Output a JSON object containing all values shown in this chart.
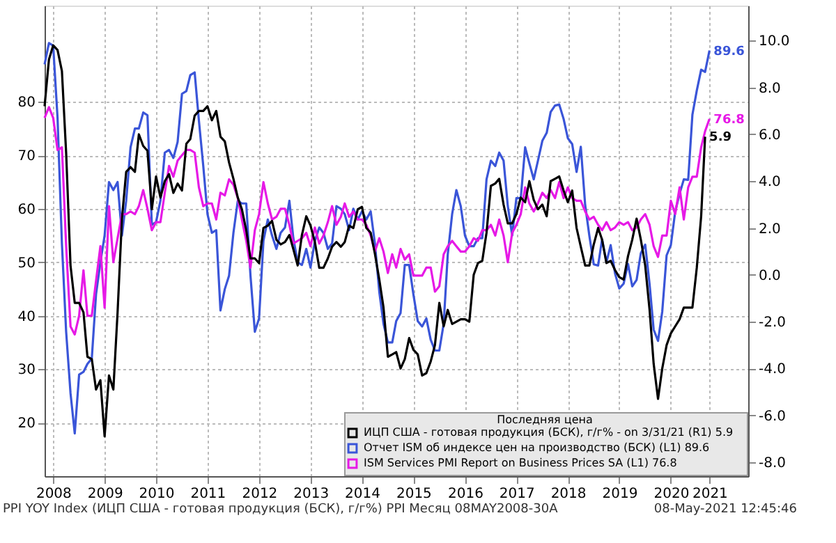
{
  "chart_data": {
    "type": "line",
    "x": [
      "2008-05",
      "2008-06",
      "2008-07",
      "2008-08",
      "2008-09",
      "2008-10",
      "2008-11",
      "2008-12",
      "2009-01",
      "2009-02",
      "2009-03",
      "2009-04",
      "2009-05",
      "2009-06",
      "2009-07",
      "2009-08",
      "2009-09",
      "2009-10",
      "2009-11",
      "2009-12",
      "2010-01",
      "2010-02",
      "2010-03",
      "2010-04",
      "2010-05",
      "2010-06",
      "2010-07",
      "2010-08",
      "2010-09",
      "2010-10",
      "2010-11",
      "2010-12",
      "2011-01",
      "2011-02",
      "2011-03",
      "2011-04",
      "2011-05",
      "2011-06",
      "2011-07",
      "2011-08",
      "2011-09",
      "2011-10",
      "2011-11",
      "2011-12",
      "2012-01",
      "2012-02",
      "2012-03",
      "2012-04",
      "2012-05",
      "2012-06",
      "2012-07",
      "2012-08",
      "2012-09",
      "2012-10",
      "2012-11",
      "2012-12",
      "2013-01",
      "2013-02",
      "2013-03",
      "2013-04",
      "2013-05",
      "2013-06",
      "2013-07",
      "2013-08",
      "2013-09",
      "2013-10",
      "2013-11",
      "2013-12",
      "2014-01",
      "2014-02",
      "2014-03",
      "2014-04",
      "2014-05",
      "2014-06",
      "2014-07",
      "2014-08",
      "2014-09",
      "2014-10",
      "2014-11",
      "2014-12",
      "2015-01",
      "2015-02",
      "2015-03",
      "2015-04",
      "2015-05",
      "2015-06",
      "2015-07",
      "2015-08",
      "2015-09",
      "2015-10",
      "2015-11",
      "2015-12",
      "2016-01",
      "2016-02",
      "2016-03",
      "2016-04",
      "2016-05",
      "2016-06",
      "2016-07",
      "2016-08",
      "2016-09",
      "2016-10",
      "2016-11",
      "2016-12",
      "2017-01",
      "2017-02",
      "2017-03",
      "2017-04",
      "2017-05",
      "2017-06",
      "2017-07",
      "2017-08",
      "2017-09",
      "2017-10",
      "2017-11",
      "2017-12",
      "2018-01",
      "2018-02",
      "2018-03",
      "2018-04",
      "2018-05",
      "2018-06",
      "2018-07",
      "2018-08",
      "2018-09",
      "2018-10",
      "2018-11",
      "2018-12",
      "2019-01",
      "2019-02",
      "2019-03",
      "2019-04",
      "2019-05",
      "2019-06",
      "2019-07",
      "2019-08",
      "2019-09",
      "2019-10",
      "2019-11",
      "2019-12",
      "2020-01",
      "2020-02",
      "2020-03",
      "2020-04",
      "2020-05",
      "2020-06",
      "2020-07",
      "2020-08",
      "2020-09",
      "2020-10",
      "2020-11",
      "2020-12",
      "2021-01",
      "2021-02",
      "2021-03",
      "2021-04"
    ],
    "series": [
      {
        "name": "ИЦП США - готовая продукция (БСК), г/г% -  on 3/31/21  (R1)  5.9",
        "color": "#000000",
        "axis": "y2",
        "values": [
          7.2,
          9.2,
          9.8,
          9.6,
          8.7,
          5.2,
          0.4,
          -1.2,
          -1.2,
          -1.6,
          -3.5,
          -3.6,
          -4.9,
          -4.5,
          -6.9,
          -4.3,
          -4.9,
          -1.6,
          2.4,
          4.4,
          4.6,
          4.4,
          6.0,
          5.5,
          5.3,
          2.8,
          4.2,
          3.3,
          4.0,
          4.3,
          3.5,
          3.9,
          3.6,
          5.6,
          5.8,
          6.8,
          7.0,
          7.0,
          7.2,
          6.6,
          7.0,
          5.9,
          5.7,
          4.8,
          4.1,
          3.3,
          2.8,
          1.9,
          0.7,
          0.7,
          0.5,
          2.0,
          2.1,
          2.3,
          1.5,
          1.3,
          1.4,
          1.7,
          1.1,
          0.4,
          1.7,
          2.5,
          2.1,
          1.4,
          0.3,
          0.3,
          0.7,
          1.2,
          1.4,
          1.2,
          1.4,
          2.1,
          2.0,
          2.8,
          2.9,
          2.0,
          1.8,
          0.9,
          -0.2,
          -1.4,
          -3.5,
          -3.4,
          -3.3,
          -4.0,
          -3.6,
          -2.7,
          -3.2,
          -3.4,
          -4.3,
          -4.2,
          -3.7,
          -3.0,
          -1.2,
          -2.2,
          -1.5,
          -2.1,
          -2.0,
          -1.9,
          -1.9,
          -2.0,
          0.0,
          0.5,
          0.6,
          1.8,
          3.8,
          3.9,
          4.1,
          3.0,
          2.2,
          2.2,
          2.6,
          3.3,
          3.1,
          4.0,
          3.2,
          2.8,
          3.0,
          2.5,
          4.0,
          4.1,
          4.2,
          3.6,
          3.1,
          3.6,
          2.0,
          1.2,
          0.4,
          0.4,
          1.3,
          2.0,
          1.5,
          0.5,
          0.6,
          0.2,
          -0.1,
          -0.2,
          0.8,
          1.5,
          2.4,
          1.5,
          0.4,
          -1.5,
          -3.8,
          -5.3,
          -4.0,
          -3.0,
          -2.5,
          -2.2,
          -1.9,
          -1.4,
          -1.4,
          -1.4,
          0.3,
          2.5,
          5.9,
          null
        ],
        "value_labels": [
          null,
          null,
          null,
          null,
          null,
          null,
          null,
          null,
          null,
          null,
          null,
          null,
          null,
          null,
          null,
          null,
          null,
          null,
          null,
          null,
          null,
          null,
          null,
          null,
          null,
          null,
          null,
          null,
          null,
          null,
          null,
          null,
          null,
          null,
          null,
          null,
          null,
          null,
          null,
          null,
          null,
          null,
          null,
          null,
          null,
          null,
          null,
          null,
          null,
          null,
          null,
          null,
          null,
          null,
          null,
          null,
          null,
          null,
          null,
          null,
          null,
          null,
          null,
          null,
          null,
          null,
          null,
          null,
          null,
          null,
          null,
          null,
          null,
          null,
          null,
          null,
          null,
          null,
          null,
          null,
          null,
          null,
          null,
          null,
          null,
          null,
          null,
          null,
          null,
          null,
          null,
          null,
          null,
          null,
          null,
          null,
          null,
          null,
          null,
          null,
          null,
          null,
          null,
          null,
          null,
          null,
          null,
          null,
          null,
          null,
          null,
          null,
          null,
          null,
          null,
          null,
          null,
          null,
          null,
          null,
          null,
          null,
          null,
          null,
          null,
          null,
          null,
          null,
          null,
          null,
          null,
          null,
          null,
          null,
          null,
          null,
          null,
          null,
          null,
          null,
          null,
          null,
          null,
          null,
          null,
          null,
          null,
          null,
          null,
          null,
          null,
          null,
          null,
          null,
          "5.9",
          null
        ]
      },
      {
        "name": "Отчет ISM об индексе цен на производство (БСК)  (L1)  89.6",
        "color": "#3a55d8",
        "values": [
          87.0,
          91.0,
          90.5,
          77.0,
          53.5,
          37.0,
          25.5,
          18.0,
          29.0,
          29.5,
          31.0,
          32.0,
          44.0,
          50.0,
          55.0,
          65.0,
          63.5,
          65.0,
          55.0,
          61.5,
          71.5,
          75.0,
          75.0,
          78.0,
          77.5,
          57.0,
          57.5,
          61.5,
          70.5,
          71.0,
          69.5,
          72.5,
          81.5,
          82.0,
          85.0,
          85.5,
          76.5,
          68.0,
          59.0,
          55.5,
          56.0,
          41.0,
          45.0,
          47.5,
          55.5,
          61.5,
          61.0,
          61.0,
          47.5,
          37.0,
          39.5,
          54.0,
          58.0,
          55.0,
          52.5,
          55.5,
          56.5,
          61.5,
          54.5,
          50.0,
          49.5,
          52.5,
          49.0,
          54.0,
          56.5,
          55.5,
          52.5,
          53.5,
          60.5,
          60.0,
          59.0,
          56.0,
          60.0,
          58.0,
          59.5,
          58.0,
          59.5,
          53.5,
          44.5,
          38.5,
          35.0,
          35.0,
          39.0,
          40.5,
          49.5,
          49.5,
          44.0,
          39.0,
          38.0,
          39.5,
          35.5,
          33.5,
          33.5,
          38.5,
          51.5,
          59.0,
          63.5,
          60.5,
          55.0,
          53.0,
          53.0,
          54.5,
          54.5,
          65.5,
          69.0,
          68.0,
          70.5,
          69.0,
          60.5,
          55.0,
          62.0,
          62.0,
          71.5,
          68.5,
          65.5,
          69.0,
          72.7,
          74.2,
          78.1,
          79.3,
          79.5,
          76.8,
          73.2,
          72.1,
          66.9,
          71.6,
          60.7,
          54.9,
          49.6,
          49.4,
          54.3,
          50.0,
          53.2,
          47.9,
          45.1,
          46.0,
          49.7,
          45.5,
          46.7,
          51.7,
          53.3,
          45.9,
          37.4,
          35.3,
          40.8,
          51.3,
          53.2,
          59.5,
          62.8,
          65.5,
          65.4,
          77.6,
          82.1,
          86.0,
          85.6,
          89.6
        ],
        "value_labels": [
          null,
          null,
          null,
          null,
          null,
          null,
          null,
          null,
          null,
          null,
          null,
          null,
          null,
          null,
          null,
          null,
          null,
          null,
          null,
          null,
          null,
          null,
          null,
          null,
          null,
          null,
          null,
          null,
          null,
          null,
          null,
          null,
          null,
          null,
          null,
          null,
          null,
          null,
          null,
          null,
          null,
          null,
          null,
          null,
          null,
          null,
          null,
          null,
          null,
          null,
          null,
          null,
          null,
          null,
          null,
          null,
          null,
          null,
          null,
          null,
          null,
          null,
          null,
          null,
          null,
          null,
          null,
          null,
          null,
          null,
          null,
          null,
          null,
          null,
          null,
          null,
          null,
          null,
          null,
          null,
          null,
          null,
          null,
          null,
          null,
          null,
          null,
          null,
          null,
          null,
          null,
          null,
          null,
          null,
          null,
          null,
          null,
          null,
          null,
          null,
          null,
          null,
          null,
          null,
          null,
          null,
          null,
          null,
          null,
          null,
          null,
          null,
          null,
          null,
          null,
          null,
          null,
          null,
          null,
          null,
          null,
          null,
          null,
          null,
          null,
          null,
          null,
          null,
          null,
          null,
          null,
          null,
          null,
          null,
          null,
          null,
          null,
          null,
          null,
          null,
          null,
          null,
          null,
          null,
          null,
          null,
          null,
          null,
          null,
          null,
          null,
          null,
          null,
          null,
          null,
          "89.6"
        ]
      },
      {
        "name": "ISM Services PMI Report on Business Prices SA  (L1)  76.8",
        "color": "#e619e6",
        "values": [
          77.0,
          79.0,
          77.0,
          71.0,
          71.5,
          53.0,
          38.0,
          36.5,
          40.0,
          48.5,
          40.0,
          40.0,
          46.5,
          53.0,
          41.5,
          60.5,
          50.0,
          54.5,
          59.0,
          59.0,
          59.5,
          59.0,
          60.5,
          63.5,
          60.0,
          56.0,
          57.5,
          57.5,
          63.0,
          68.0,
          66.0,
          69.0,
          70.0,
          71.0,
          71.0,
          70.5,
          64.0,
          60.5,
          61.0,
          61.0,
          58.0,
          63.0,
          62.5,
          65.5,
          64.5,
          62.0,
          58.0,
          54.0,
          49.0,
          56.0,
          59.0,
          65.0,
          61.0,
          58.0,
          58.5,
          60.0,
          60.0,
          57.0,
          53.5,
          54.0,
          54.5,
          55.5,
          53.0,
          56.5,
          53.5,
          55.0,
          57.5,
          60.5,
          57.0,
          58.5,
          61.0,
          58.5,
          59.5,
          58.0,
          58.0,
          57.0,
          55.0,
          52.0,
          54.5,
          52.0,
          48.0,
          51.5,
          49.0,
          52.5,
          50.5,
          51.5,
          47.5,
          47.5,
          47.5,
          49.0,
          49.0,
          44.5,
          45.5,
          51.5,
          53.0,
          54.0,
          53.0,
          52.0,
          52.0,
          53.0,
          54.5,
          54.0,
          56.0,
          56.0,
          57.0,
          55.0,
          58.0,
          55.0,
          50.0,
          55.5,
          57.0,
          59.0,
          64.0,
          61.0,
          59.5,
          61.0,
          63.0,
          62.0,
          63.5,
          62.0,
          65.0,
          62.0,
          64.0,
          62.0,
          61.5,
          61.5,
          59.5,
          58.0,
          58.5,
          57.0,
          56.0,
          57.5,
          56.0,
          56.5,
          57.5,
          57.0,
          57.5,
          56.0,
          56.5,
          58.0,
          59.0,
          57.0,
          53.0,
          51.0,
          55.0,
          55.0,
          61.5,
          59.0,
          64.0,
          58.0,
          64.0,
          66.0,
          66.0,
          71.5,
          74.5,
          76.8
        ],
        "value_labels": [
          null,
          null,
          null,
          null,
          null,
          null,
          null,
          null,
          null,
          null,
          null,
          null,
          null,
          null,
          null,
          null,
          null,
          null,
          null,
          null,
          null,
          null,
          null,
          null,
          null,
          null,
          null,
          null,
          null,
          null,
          null,
          null,
          null,
          null,
          null,
          null,
          null,
          null,
          null,
          null,
          null,
          null,
          null,
          null,
          null,
          null,
          null,
          null,
          null,
          null,
          null,
          null,
          null,
          null,
          null,
          null,
          null,
          null,
          null,
          null,
          null,
          null,
          null,
          null,
          null,
          null,
          null,
          null,
          null,
          null,
          null,
          null,
          null,
          null,
          null,
          null,
          null,
          null,
          null,
          null,
          null,
          null,
          null,
          null,
          null,
          null,
          null,
          null,
          null,
          null,
          null,
          null,
          null,
          null,
          null,
          null,
          null,
          null,
          null,
          null,
          null,
          null,
          null,
          null,
          null,
          null,
          null,
          null,
          null,
          null,
          null,
          null,
          null,
          null,
          null,
          null,
          null,
          null,
          null,
          null,
          null,
          null,
          null,
          null,
          null,
          null,
          null,
          null,
          null,
          null,
          null,
          null,
          null,
          null,
          null,
          null,
          null,
          null,
          null,
          null,
          null,
          null,
          null,
          null,
          null,
          null,
          null,
          null,
          null,
          null,
          null,
          null,
          null,
          null,
          null,
          "76.8"
        ]
      }
    ],
    "xlim": [
      "2008-05",
      "2022-01"
    ],
    "xticks": [
      {
        "value": "2008-07",
        "label": "2008"
      },
      {
        "value": "2009-07",
        "label": "2009"
      },
      {
        "value": "2010-07",
        "label": "2010"
      },
      {
        "value": "2011-07",
        "label": "2011"
      },
      {
        "value": "2012-07",
        "label": "2012"
      },
      {
        "value": "2013-07",
        "label": "2013"
      },
      {
        "value": "2014-07",
        "label": "2014"
      },
      {
        "value": "2015-07",
        "label": "2015"
      },
      {
        "value": "2016-07",
        "label": "2016"
      },
      {
        "value": "2017-07",
        "label": "2017"
      },
      {
        "value": "2018-07",
        "label": "2018"
      },
      {
        "value": "2019-07",
        "label": "2019"
      },
      {
        "value": "2020-07",
        "label": "2020"
      },
      {
        "value": "2021-04",
        "label": "2021"
      }
    ],
    "ylim": [
      10,
      98
    ],
    "yticks": [
      20,
      30,
      40,
      50,
      60,
      70,
      80
    ],
    "y2lim": [
      -8.6,
      11.5
    ],
    "y2ticks": [
      {
        "value": -8,
        "label": "-8.0"
      },
      {
        "value": -6,
        "label": "-6.0"
      },
      {
        "value": -4,
        "label": "-4.0"
      },
      {
        "value": -2,
        "label": "-2.0"
      },
      {
        "value": 0,
        "label": "0.0"
      },
      {
        "value": 2,
        "label": "2.0"
      },
      {
        "value": 4,
        "label": "4.0"
      },
      {
        "value": 6,
        "label": "6.0"
      },
      {
        "value": 8,
        "label": "8.0"
      },
      {
        "value": 10,
        "label": "10.0"
      }
    ],
    "legend_title": "Последняя цена",
    "legend": "bottom right",
    "grid": true,
    "line_style": "solid",
    "marker": "none",
    "annotations": [
      "PPI YOY Index (ИЦП США - готовая продукция (БСК), г/г%) PPI  Месяц 08MAY2008-30A",
      "08-May-2021 12:45:46"
    ]
  }
}
